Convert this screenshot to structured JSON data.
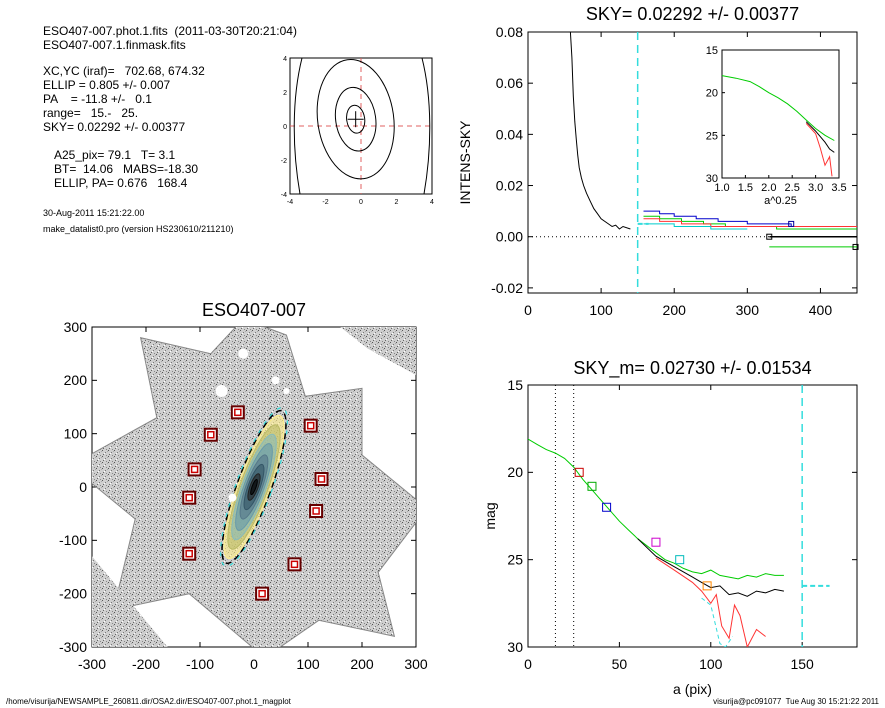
{
  "header": {
    "line1": "ESO407-007.phot.1.fits  (2011-03-30T20:21:04)",
    "line2": "ESO407-007.1.finmask.fits",
    "params": [
      "XC,YC (iraf)=   702.68, 674.32",
      "ELLIP = 0.805 +/- 0.007",
      "PA    = -11.8 +/-   0.1",
      "range=   15.-   25.",
      "SKY= 0.02292 +/- 0.00377"
    ],
    "results": [
      "A25_pix= 79.1   T= 3.1",
      "BT=  14.06   MABS=-18.30",
      "ELLIP, PA= 0.676   168.4"
    ],
    "date": "30-Aug-2011 15:21:22.00",
    "program": "make_datalist0.pro (version HS230610/211210)"
  },
  "footer": {
    "path": "/home/visurija/NEWSAMPLE_260811.dir/OSA2.dir/ESO407-007.phot.1_magplot",
    "user": "visurija@pc091077  Tue Aug 30 15:21:22 2011"
  },
  "chart_data": [
    {
      "id": "contour",
      "type": "contour",
      "xlim": [
        -4,
        4
      ],
      "ylim": [
        -4,
        4
      ],
      "xticks": [
        "-4",
        "-2",
        "0",
        "2",
        "4"
      ],
      "yticks": [
        "-4",
        "-2",
        "0",
        "2",
        "4"
      ],
      "center": [
        -0.3,
        0.4
      ]
    },
    {
      "id": "sky",
      "type": "line",
      "title": "SKY= 0.02292 +/- 0.00377",
      "ylabel": "INTENS-SKY",
      "xlim": [
        0,
        450
      ],
      "ylim": [
        -0.022,
        0.08
      ],
      "xticks": [
        "0",
        "100",
        "200",
        "300",
        "400"
      ],
      "yticks": [
        "-0.02",
        "0.00",
        "0.02",
        "0.04",
        "0.06",
        "0.08"
      ],
      "sky_marker_x": 150,
      "profile": [
        [
          58,
          0.08
        ],
        [
          60,
          0.07
        ],
        [
          62,
          0.055
        ],
        [
          64,
          0.045
        ],
        [
          66,
          0.038
        ],
        [
          68,
          0.032
        ],
        [
          70,
          0.027
        ],
        [
          73,
          0.023
        ],
        [
          76,
          0.02
        ],
        [
          80,
          0.017
        ],
        [
          85,
          0.014
        ],
        [
          90,
          0.011
        ],
        [
          95,
          0.009
        ],
        [
          100,
          0.007
        ],
        [
          105,
          0.006
        ],
        [
          110,
          0.005
        ],
        [
          115,
          0.004
        ],
        [
          120,
          0.0045
        ],
        [
          125,
          0.003
        ],
        [
          130,
          0.004
        ],
        [
          140,
          0.003
        ]
      ],
      "steps": [
        {
          "color": "#0000cc",
          "pts": [
            [
              158,
              0.01
            ],
            [
              180,
              0.009
            ],
            [
              200,
              0.008
            ],
            [
              230,
              0.007
            ],
            [
              260,
              0.006
            ],
            [
              300,
              0.005
            ],
            [
              330,
              0.005
            ],
            [
              360,
              0.004
            ]
          ]
        },
        {
          "color": "#00cc00",
          "pts": [
            [
              158,
              0.008
            ],
            [
              180,
              0.007
            ],
            [
              210,
              0.006
            ],
            [
              240,
              0.005
            ],
            [
              270,
              0.004
            ],
            [
              300,
              0.004
            ],
            [
              340,
              0.003
            ],
            [
              450,
              0.003
            ]
          ]
        },
        {
          "color": "#ff3333",
          "pts": [
            [
              158,
              0.007
            ],
            [
              180,
              0.006
            ],
            [
              210,
              0.005
            ],
            [
              250,
              0.004
            ],
            [
              290,
              0.004
            ],
            [
              320,
              0.004
            ],
            [
              450,
              0.004
            ]
          ]
        },
        {
          "color": "#00cccc",
          "pts": [
            [
              158,
              0.005
            ],
            [
              200,
              0.004
            ],
            [
              250,
              0.003
            ],
            [
              300,
              0.003
            ]
          ]
        }
      ],
      "tail": [
        [
          330,
          0.0
        ],
        [
          450,
          0.0
        ]
      ],
      "green_low": [
        [
          330,
          -0.004
        ],
        [
          450,
          -0.004
        ]
      ],
      "inset": {
        "xlabel": "a^0.25",
        "xlim": [
          1.0,
          3.5
        ],
        "ylim": [
          30,
          15
        ],
        "xticks": [
          "1.0",
          "1.5",
          "2.0",
          "2.5",
          "3.0",
          "3.5"
        ],
        "yticks": [
          "15",
          "20",
          "25",
          "30"
        ],
        "green": [
          [
            1.0,
            18.0
          ],
          [
            1.3,
            18.3
          ],
          [
            1.6,
            18.7
          ],
          [
            1.8,
            19.3
          ],
          [
            2.0,
            20.0
          ],
          [
            2.2,
            20.6
          ],
          [
            2.4,
            21.3
          ],
          [
            2.6,
            22.2
          ],
          [
            2.8,
            23.2
          ],
          [
            3.0,
            24.2
          ],
          [
            3.2,
            25.0
          ],
          [
            3.4,
            25.6
          ]
        ],
        "black": [
          [
            2.8,
            23.4
          ],
          [
            3.0,
            24.5
          ],
          [
            3.2,
            25.8
          ],
          [
            3.3,
            26.6
          ],
          [
            3.4,
            27.0
          ]
        ],
        "red": [
          [
            2.8,
            23.6
          ],
          [
            3.0,
            24.8
          ],
          [
            3.1,
            26.5
          ],
          [
            3.2,
            28.5
          ],
          [
            3.3,
            27.5
          ],
          [
            3.35,
            29.8
          ]
        ]
      }
    },
    {
      "id": "image",
      "type": "image",
      "title": "ESO407-007",
      "xlim": [
        -300,
        300
      ],
      "ylim": [
        -300,
        300
      ],
      "xticks": [
        "-300",
        "-200",
        "-100",
        "0",
        "100",
        "200",
        "300"
      ],
      "yticks": [
        "-300",
        "-200",
        "-100",
        "0",
        "100",
        "200",
        "300"
      ],
      "stars": [
        [
          -30,
          140
        ],
        [
          -80,
          98
        ],
        [
          -110,
          33
        ],
        [
          -120,
          -20
        ],
        [
          -120,
          -125
        ],
        [
          15,
          -200
        ],
        [
          75,
          -145
        ],
        [
          115,
          -45
        ],
        [
          125,
          15
        ],
        [
          105,
          115
        ]
      ]
    },
    {
      "id": "mag",
      "type": "line",
      "title": "SKY_m=  0.02730 +/- 0.01534",
      "xlabel": "a (pix)",
      "ylabel": "mag",
      "xlim": [
        0,
        180
      ],
      "ylim": [
        30,
        15
      ],
      "xticks": [
        "0",
        "50",
        "100",
        "150"
      ],
      "yticks": [
        "15",
        "20",
        "25",
        "30"
      ],
      "vlines": [
        15,
        25
      ],
      "sky_marker_x": 150,
      "green": [
        [
          0,
          18.1
        ],
        [
          5,
          18.4
        ],
        [
          10,
          18.7
        ],
        [
          15,
          18.9
        ],
        [
          20,
          19.2
        ],
        [
          25,
          19.7
        ],
        [
          30,
          20.4
        ],
        [
          35,
          21.0
        ],
        [
          40,
          21.6
        ],
        [
          45,
          22.2
        ],
        [
          50,
          22.8
        ],
        [
          55,
          23.3
        ],
        [
          60,
          23.8
        ],
        [
          65,
          24.2
        ],
        [
          70,
          24.6
        ],
        [
          75,
          25.0
        ],
        [
          80,
          25.2
        ],
        [
          85,
          25.5
        ],
        [
          90,
          25.7
        ],
        [
          95,
          25.8
        ],
        [
          100,
          25.6
        ],
        [
          105,
          25.9
        ],
        [
          110,
          26.0
        ],
        [
          115,
          26.1
        ],
        [
          120,
          25.9
        ],
        [
          125,
          26.0
        ],
        [
          130,
          25.8
        ],
        [
          135,
          25.9
        ],
        [
          140,
          25.9
        ]
      ],
      "black": [
        [
          60,
          23.8
        ],
        [
          70,
          24.8
        ],
        [
          80,
          25.4
        ],
        [
          90,
          26.0
        ],
        [
          95,
          26.3
        ],
        [
          100,
          26.6
        ],
        [
          105,
          26.5
        ],
        [
          110,
          27.0
        ],
        [
          115,
          26.9
        ],
        [
          120,
          27.1
        ],
        [
          125,
          26.8
        ],
        [
          130,
          26.9
        ],
        [
          135,
          26.7
        ],
        [
          140,
          26.8
        ]
      ],
      "red": [
        [
          70,
          24.9
        ],
        [
          80,
          25.6
        ],
        [
          90,
          26.3
        ],
        [
          95,
          26.8
        ],
        [
          100,
          27.5
        ],
        [
          103,
          27.0
        ],
        [
          106,
          28.8
        ],
        [
          110,
          29.5
        ],
        [
          113,
          27.6
        ],
        [
          116,
          28.2
        ],
        [
          120,
          30.0
        ],
        [
          125,
          29.0
        ],
        [
          130,
          29.4
        ]
      ],
      "cyan": [
        [
          95,
          27.2
        ],
        [
          100,
          27.6
        ],
        [
          105,
          29.8
        ],
        [
          108,
          30.0
        ],
        [
          112,
          29.4
        ]
      ],
      "boxes": [
        {
          "x": 28,
          "y": 20.0,
          "color": "#cc0000"
        },
        {
          "x": 35,
          "y": 20.8,
          "color": "#00aa00"
        },
        {
          "x": 43,
          "y": 22.0,
          "color": "#0000cc"
        },
        {
          "x": 70,
          "y": 24.0,
          "color": "#cc00cc"
        },
        {
          "x": 83,
          "y": 25.0,
          "color": "#00bbbb"
        },
        {
          "x": 98,
          "y": 26.5,
          "color": "#ff8800"
        }
      ],
      "sky_level": 26.5
    }
  ]
}
